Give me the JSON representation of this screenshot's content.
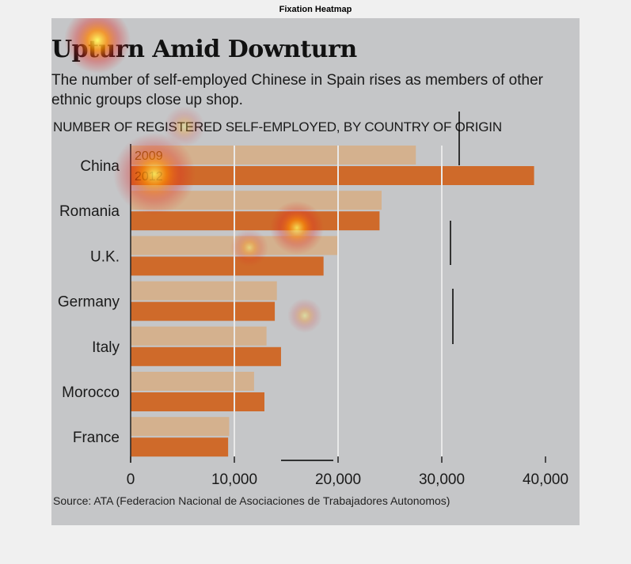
{
  "figure": {
    "title": "Fixation Heatmap"
  },
  "article": {
    "headline": "Upturn Amid Downturn",
    "subhead": "The number of self-employed Chinese in Spain rises as members of other ethnic groups close up shop.",
    "source": "Source: ATA (Federacion Nacional de Asociaciones de Trabajadores Autonomos)"
  },
  "colors": {
    "panel_bg": "#c5c6c8",
    "bar_2009": "#d4b18e",
    "bar_2012": "#cf6a2a",
    "gridline": "#e9e9e9",
    "label_2009": "#8a5a10",
    "label_2012": "#5a1800",
    "heat_hot": "#ffff66",
    "heat_mid": "#ff8800",
    "heat_low": "#e02020"
  },
  "chart_data": {
    "type": "bar",
    "orientation": "horizontal",
    "title": "NUMBER OF REGISTERED SELF-EMPLOYED, BY COUNTRY OF ORIGIN",
    "categories": [
      "China",
      "Romania",
      "U.K.",
      "Germany",
      "Italy",
      "Morocco",
      "France"
    ],
    "series": [
      {
        "name": "2009",
        "values": [
          27500,
          24200,
          20000,
          14100,
          13100,
          11900,
          9500
        ]
      },
      {
        "name": "2012",
        "values": [
          38900,
          24000,
          18600,
          13900,
          14500,
          12900,
          9400
        ]
      }
    ],
    "xlim": [
      0,
      40000
    ],
    "xticks": [
      0,
      10000,
      20000,
      30000,
      40000
    ],
    "xtick_labels": [
      "0",
      "10,000",
      "20,000",
      "30,000",
      "40,000"
    ],
    "grid": "vertical",
    "legend": "inline labels on first category bars"
  },
  "heatmap": {
    "hotspot_count": 6
  }
}
